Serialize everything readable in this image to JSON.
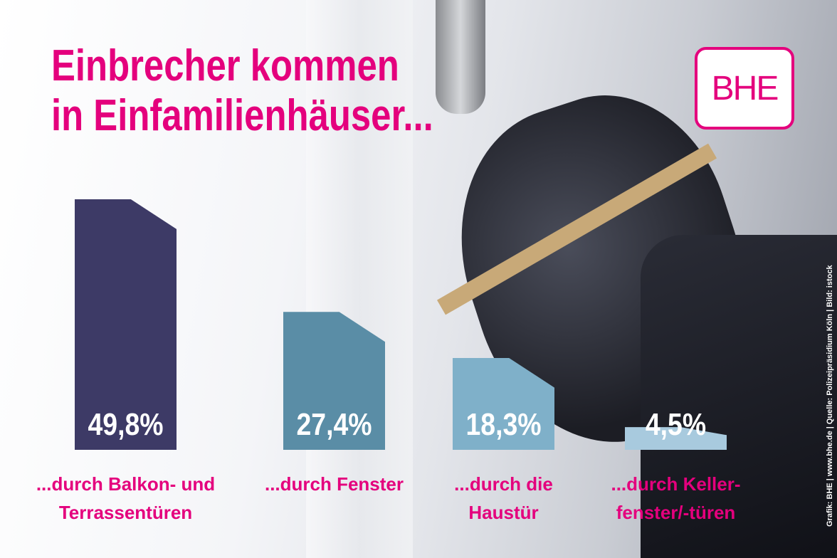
{
  "chart_data": {
    "type": "bar",
    "title": [
      "Einbrecher kommen",
      "in Einfamilienhäuser..."
    ],
    "logo": "BHE",
    "source": "Grafik: BHE | www.bhe.de | Quelle: Polizeipräsidium Köln | Bild: istock",
    "categories": [
      "...durch Balkon- und Terrassentüren",
      "...durch Fenster",
      "...durch die Haustür",
      "...durch Keller-fenster/-türen"
    ],
    "values": [
      49.8,
      27.4,
      18.3,
      4.5
    ],
    "value_labels": [
      "49,8%",
      "27,4%",
      "18,3%",
      "4,5%"
    ],
    "colors": [
      "#3d3a66",
      "#5a8da6",
      "#7fb0c9",
      "#a8cade"
    ]
  }
}
